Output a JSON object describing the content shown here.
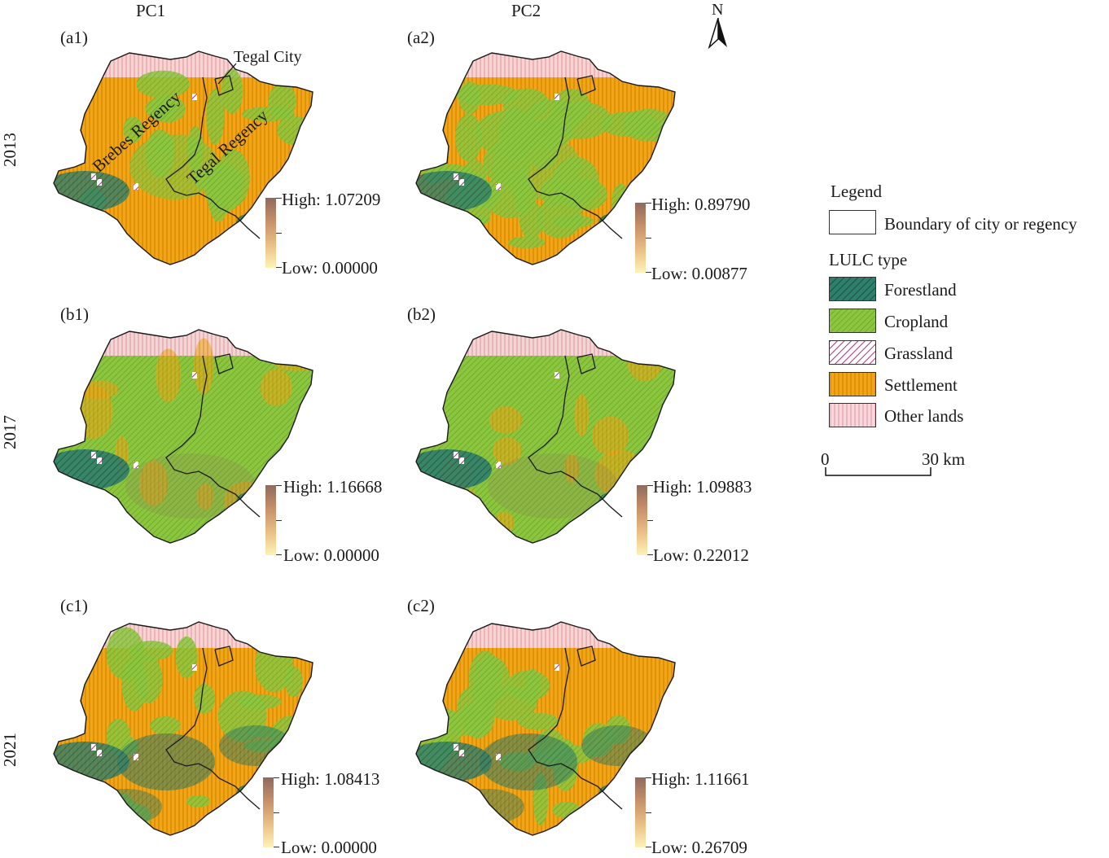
{
  "figure": {
    "columns": [
      "PC1",
      "PC2"
    ],
    "rows": [
      "2013",
      "2017",
      "2021"
    ],
    "north_label": "N",
    "panels": [
      {
        "label": "(a1)",
        "high": "High: 1.07209",
        "low": "Low: 0.00000",
        "landuse": "settlement-heavy"
      },
      {
        "label": "(a2)",
        "high": "High: 0.89790",
        "low": "Low: 0.00877",
        "landuse": "mixed"
      },
      {
        "label": "(b1)",
        "high": "High: 1.16668",
        "low": "Low: 0.00000",
        "landuse": "cropland-heavy"
      },
      {
        "label": "(b2)",
        "high": "High: 1.09883",
        "low": "Low: 0.22012",
        "landuse": "cropland-heavy"
      },
      {
        "label": "(c1)",
        "high": "High: 1.08413",
        "low": "Low: 0.00000",
        "landuse": "settlement-forest"
      },
      {
        "label": "(c2)",
        "high": "High: 1.11661",
        "low": "Low: 0.26709",
        "landuse": "settlement-forest"
      }
    ],
    "annotations": {
      "tegal_city": "Tegal City",
      "brebes_regency": "Brebes Regency",
      "tegal_regency": "Tegal Regency"
    }
  },
  "legend": {
    "title": "Legend",
    "boundary": "Boundary of city or regency",
    "lulc_title": "LULC type",
    "classes": [
      {
        "name": "Forestland",
        "color": "#2e7f6b",
        "hatch": "#1e4f45"
      },
      {
        "name": "Cropland",
        "color": "#8cc63f",
        "hatch": "#6aa428"
      },
      {
        "name": "Grassland",
        "color": "#ffffff",
        "hatch": "#b0327f"
      },
      {
        "name": "Settlement",
        "color": "#f2a516",
        "hatch": "#d68a00"
      },
      {
        "name": "Other lands",
        "color": "#f7d6dc",
        "hatch": "#e8a7b3"
      }
    ],
    "scale_start": "0",
    "scale_end": "30 km"
  },
  "colors": {
    "colorbar_high": "#8f6a5e",
    "colorbar_low": "#fdf2b8",
    "boundary": "#1a1a1a"
  }
}
